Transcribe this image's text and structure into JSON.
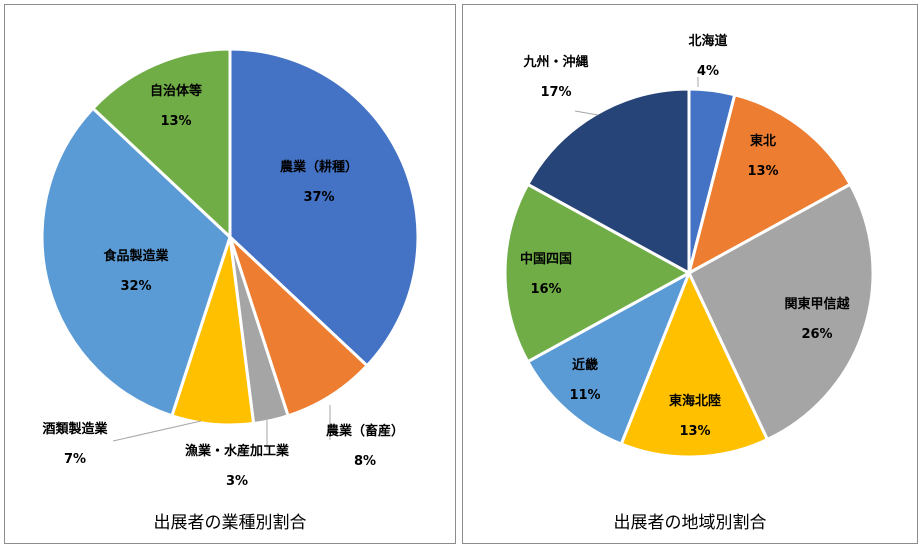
{
  "chart_data": [
    {
      "type": "pie",
      "title": "出展者の業種別割合",
      "categories": [
        "農業（耕種）",
        "農業（畜産）",
        "漁業・水産加工業",
        "酒類製造業",
        "食品製造業",
        "自治体等"
      ],
      "values": [
        37,
        8,
        3,
        7,
        32,
        13
      ],
      "value_labels": [
        "37%",
        "8%",
        "3%",
        "7%",
        "32%",
        "13%"
      ],
      "colors": [
        "#4472c4",
        "#ed7d31",
        "#a5a5a5",
        "#ffc000",
        "#5b9bd5",
        "#70ad47"
      ],
      "start": "12 o'clock, clockwise"
    },
    {
      "type": "pie",
      "title": "出展者の地域別割合",
      "categories": [
        "北海道",
        "東北",
        "関東甲信越",
        "東海北陸",
        "近畿",
        "中国四国",
        "九州・沖縄"
      ],
      "values": [
        4,
        13,
        26,
        13,
        11,
        16,
        17
      ],
      "value_labels": [
        "4%",
        "13%",
        "26%",
        "13%",
        "11%",
        "16%",
        "17%"
      ],
      "colors": [
        "#4472c4",
        "#ed7d31",
        "#a5a5a5",
        "#ffc000",
        "#5b9bd5",
        "#70ad47",
        "#264478"
      ],
      "start": "12 o'clock, clockwise"
    }
  ]
}
